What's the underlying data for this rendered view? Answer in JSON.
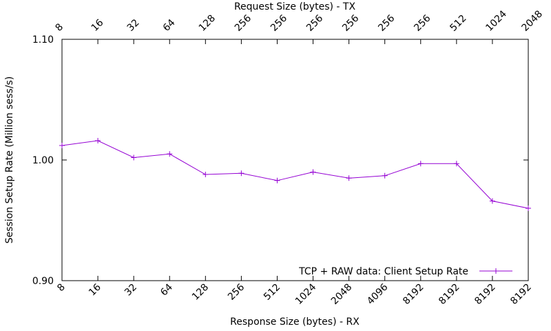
{
  "chart_data": {
    "type": "line",
    "title": "",
    "xlabel_bottom": "Response Size (bytes) - RX",
    "xlabel_top": "Request Size (bytes) - TX",
    "ylabel": "Session Setup Rate (Million sess/s)",
    "ylim": [
      0.9,
      1.1
    ],
    "yticks": [
      "0.90",
      "1.00",
      "1.10"
    ],
    "grid": false,
    "legend_position": "bottom-right",
    "bottom_tick_labels": [
      "8",
      "16",
      "32",
      "64",
      "128",
      "256",
      "512",
      "1024",
      "2048",
      "4096",
      "8192",
      "8192",
      "8192",
      "8192"
    ],
    "top_tick_labels": [
      "8",
      "16",
      "32",
      "64",
      "128",
      "256",
      "256",
      "256",
      "256",
      "256",
      "256",
      "512",
      "1024",
      "2048"
    ],
    "series": [
      {
        "name": "TCP + RAW data: Client Setup Rate",
        "color": "#9400d3",
        "values": [
          1.012,
          1.016,
          1.002,
          1.005,
          0.988,
          0.989,
          0.983,
          0.99,
          0.985,
          0.987,
          0.997,
          0.997,
          0.966,
          0.96
        ]
      }
    ]
  }
}
